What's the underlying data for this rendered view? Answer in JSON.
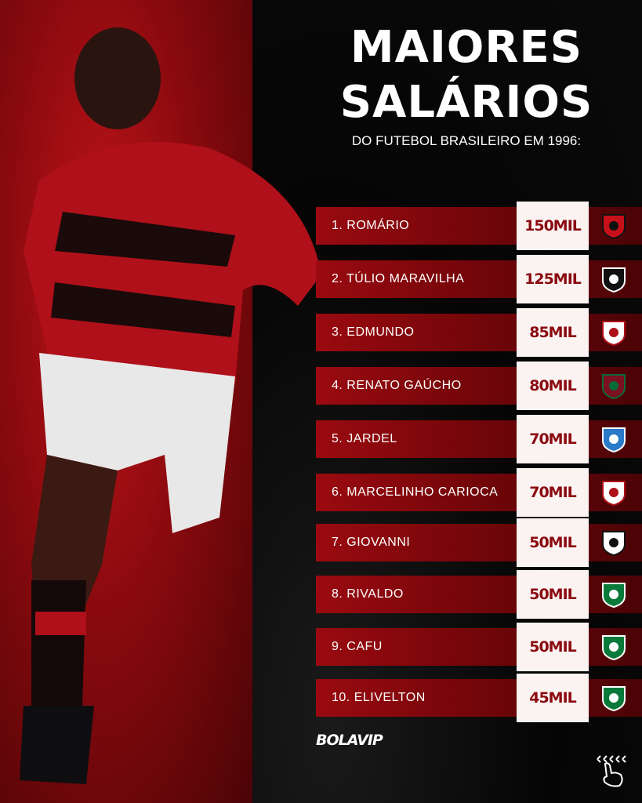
{
  "title_line1": "MAIORES",
  "title_line2": "SALÁRIOS",
  "subtitle": "DO FUTEBOL BRASILEIRO EM 1996:",
  "ranking": [
    {
      "name": "1. ROMÁRIO",
      "salary": "150MIL",
      "club_icon": "flamengo-crest"
    },
    {
      "name": "2. TÚLIO MARAVILHA",
      "salary": "125MIL",
      "club_icon": "botafogo-crest"
    },
    {
      "name": "3. EDMUNDO",
      "salary": "85MIL",
      "club_icon": "corinthians-crest"
    },
    {
      "name": "4. RENATO GAÚCHO",
      "salary": "80MIL",
      "club_icon": "fluminense-crest"
    },
    {
      "name": "5. JARDEL",
      "salary": "70MIL",
      "club_icon": "gremio-crest"
    },
    {
      "name": "6. MARCELINHO CARIOCA",
      "salary": "70MIL",
      "club_icon": "corinthians-crest"
    },
    {
      "name": "7. GIOVANNI",
      "salary": "50MIL",
      "club_icon": "santos-crest"
    },
    {
      "name": "8. RIVALDO",
      "salary": "50MIL",
      "club_icon": "palmeiras-crest"
    },
    {
      "name": "9. CAFU",
      "salary": "50MIL",
      "club_icon": "palmeiras-crest"
    },
    {
      "name": "10. ELIVELTON",
      "salary": "45MIL",
      "club_icon": "palmeiras-crest"
    }
  ],
  "brand": "BOLAVIP",
  "colors": {
    "accent": "#8a0a10",
    "value_box": "#fbf3f2",
    "background": "#050505"
  }
}
